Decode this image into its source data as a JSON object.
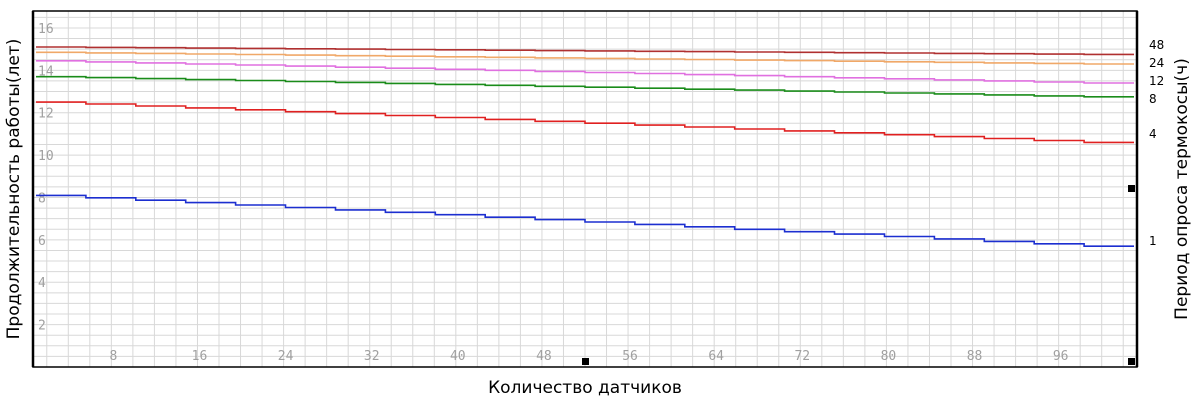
{
  "chart_data": {
    "type": "line",
    "xlabel": "Количество датчиков",
    "ylabel": "Продолжительность работы(лет)",
    "y2label": "Период опроса термокосы(ч)",
    "xlim": [
      1,
      103
    ],
    "ylim": [
      0,
      16.8
    ],
    "x_ticks": [
      8,
      16,
      24,
      32,
      40,
      48,
      56,
      64,
      72,
      80,
      88,
      96
    ],
    "y_ticks": [
      2,
      4,
      6,
      8,
      10,
      12,
      14,
      16
    ],
    "grid": true,
    "x": [
      1,
      103
    ],
    "series": [
      {
        "name": "48",
        "color": "#b03030",
        "values": [
          15.1,
          14.75
        ]
      },
      {
        "name": "24",
        "color": "#f0a868",
        "values": [
          14.85,
          14.3
        ]
      },
      {
        "name": "12",
        "color": "#e070e0",
        "values": [
          14.45,
          13.4
        ]
      },
      {
        "name": "8",
        "color": "#1a8c1a",
        "values": [
          13.7,
          12.75
        ]
      },
      {
        "name": "4",
        "color": "#e02020",
        "values": [
          12.5,
          10.6
        ]
      },
      {
        "name": "1",
        "color": "#1c2fd0",
        "values": [
          8.1,
          5.7
        ]
      }
    ]
  }
}
